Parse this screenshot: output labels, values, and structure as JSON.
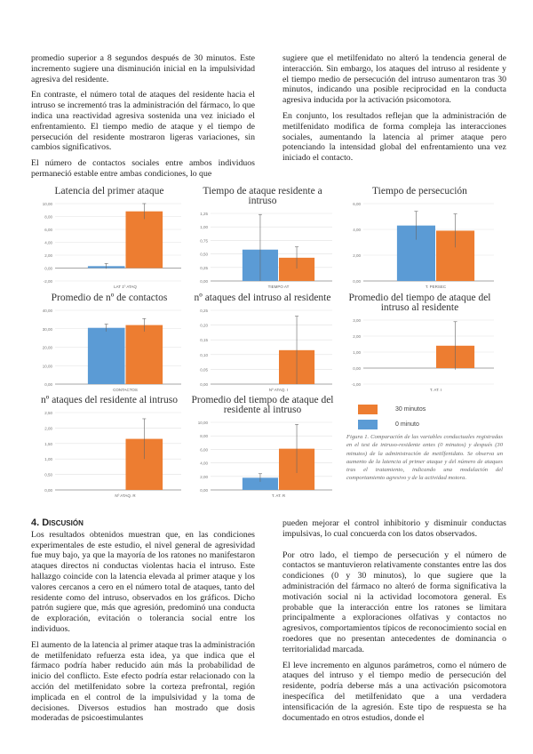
{
  "top_left": [
    "promedio superior a 8 segundos después de 30 minutos. Este incremento sugiere una disminución inicial en la impulsividad agresiva del residente.",
    "En contraste, el número total de ataques del residente hacia el intruso se incrementó tras la administración del fármaco, lo que indica una reactividad agresiva sostenida una vez iniciado el enfrentamiento. El tiempo medio de ataque y el tiempo de persecución del residente mostraron ligeras variaciones, sin cambios significativos.",
    "El número de contactos sociales entre ambos individuos permaneció estable entre ambas condiciones, lo que"
  ],
  "top_right": [
    "sugiere que el metilfenidato no alteró la tendencia general de interacción. Sin embargo, los ataques del intruso al residente y el tiempo medio de persecución del intruso aumentaron tras 30 minutos, indicando una posible reciprocidad en la conducta agresiva inducida por la activación psicomotora.",
    "En conjunto, los resultados reflejan que la administración de metilfenidato modifica de forma compleja las interacciones sociales, aumentando la latencia al primer ataque pero potenciando la intensidad global del enfrentamiento una vez iniciado el contacto."
  ],
  "section_title": "4. Discusión",
  "bottom_left": [
    "Los resultados obtenidos muestran que, en las condiciones experimentales de este estudio, el nivel general de agresividad fue muy bajo, ya que la mayoría de los ratones no manifestaron ataques directos ni conductas violentas hacia el intruso. Este hallazgo coincide con la latencia elevada al primer ataque y los valores cercanos a cero en el número total de ataques, tanto del residente como del intruso, observados en los gráficos. Dicho patrón sugiere que, más que agresión, predominó una conducta de exploración, evitación o tolerancia social entre los individuos.",
    "El aumento de la latencia al primer ataque tras la administración de metilfenidato refuerza esta idea, ya que indica que el fármaco podría haber reducido aún más la probabilidad de inicio del conflicto. Este efecto podría estar relacionado con la acción del metilfenidato sobre la corteza prefrontal, región implicada en el control de la impulsividad y la toma de decisiones. Diversos estudios han mostrado que dosis moderadas de psicoestimulantes"
  ],
  "bottom_right": [
    "pueden mejorar el control inhibitorio y disminuir conductas impulsivas, lo cual concuerda con los datos observados.",
    "Por otro lado, el tiempo de persecución y el número de contactos se mantuvieron relativamente constantes entre las dos condiciones (0 y 30 minutos), lo que sugiere que la administración del fármaco no alteró de forma significativa la motivación social ni la actividad locomotora general. Es probable que la interacción entre los ratones se limitara principalmente a exploraciones olfativas y contactos no agresivos, comportamientos típicos de reconocimiento social en roedores que no presentan antecedentes de dominancia o territorialidad marcada.",
    "El leve incremento en algunos parámetros, como el número de ataques del intruso y el tiempo medio de persecución del residente, podría deberse más a una activación psicomotora inespecífica del metilfenidato que a una verdadera intensificación de la agresión. Este tipo de respuesta se ha documentado en otros estudios, donde el"
  ],
  "legend": [
    {
      "label": "30 minutos",
      "color": "#ED7D31"
    },
    {
      "label": "0 minuto",
      "color": "#5B9BD5"
    }
  ],
  "caption": "Figura 1. Comparación de las variables conductuales registradas en el test de intruso-residente antes (0 minutos) y después (30 minutos) de la administración de metilfenidato. Se observa un aumento de la latencia al primer ataque y del número de ataques tras el tratamiento, indicando una modulación del comportamiento agresivo y de la actividad motora.",
  "chart_data": [
    {
      "type": "bar",
      "title": "Latencia del primer ataque",
      "categories": [
        "LAT 1º ATAQ"
      ],
      "ylim": [
        -2,
        10
      ],
      "ticks": [
        "10,00",
        "8,00",
        "6,00",
        "4,00",
        "2,00",
        "0,00",
        "-2,00"
      ],
      "series": [
        {
          "name": "0 minuto",
          "values": [
            0.3
          ],
          "err": [
            0.4
          ]
        },
        {
          "name": "30 minutos",
          "values": [
            8.8
          ],
          "err": [
            1.2
          ]
        }
      ]
    },
    {
      "type": "bar",
      "title": "Tiempo de ataque residente a intruso",
      "categories": [
        "TIEMPO AT"
      ],
      "ylim": [
        0,
        1.25
      ],
      "ticks": [
        "1,25",
        "1,00",
        "0,75",
        "0,50",
        "0,25",
        "0,00"
      ],
      "series": [
        {
          "name": "0 minuto",
          "values": [
            0.58
          ],
          "err": [
            0.65
          ]
        },
        {
          "name": "30 minutos",
          "values": [
            0.43
          ],
          "err": [
            0.2
          ]
        }
      ]
    },
    {
      "type": "bar",
      "title": "Tiempo de persecución",
      "categories": [
        "T. PERSEC"
      ],
      "ylim": [
        0,
        6
      ],
      "ticks": [
        "6,00",
        "4,00",
        "2,00",
        "0,00"
      ],
      "series": [
        {
          "name": "0 minuto",
          "values": [
            4.3
          ],
          "err": [
            1.1
          ]
        },
        {
          "name": "30 minutos",
          "values": [
            3.9
          ],
          "err": [
            1.3
          ]
        }
      ]
    },
    {
      "type": "bar",
      "title": "Promedio de nº de contactos",
      "categories": [
        "CONTACTOS"
      ],
      "ylim": [
        0,
        40
      ],
      "ticks": [
        "40,00",
        "30,00",
        "20,00",
        "10,00",
        "0,00"
      ],
      "series": [
        {
          "name": "0 minuto",
          "values": [
            30.5
          ],
          "err": [
            2
          ]
        },
        {
          "name": "30 minutos",
          "values": [
            32
          ],
          "err": [
            3.5
          ]
        }
      ]
    },
    {
      "type": "bar",
      "title": "nº ataques del intruso al residente",
      "categories": [
        "Nº ATAQ. I"
      ],
      "ylim": [
        0,
        0.25
      ],
      "ticks": [
        "0,25",
        "0,20",
        "0,15",
        "0,10",
        "0,05",
        "0,00"
      ],
      "series": [
        {
          "name": "0 minuto",
          "values": [
            0
          ],
          "err": [
            0
          ]
        },
        {
          "name": "30 minutos",
          "values": [
            0.115
          ],
          "err": [
            0.115
          ]
        }
      ]
    },
    {
      "type": "bar",
      "title": "Promedio del tiempo de ataque del intruso al residente",
      "categories": [
        "T. AT. I"
      ],
      "ylim": [
        -1,
        3
      ],
      "ticks": [
        "3,00",
        "2,00",
        "1,00",
        "0,00",
        "-1,00"
      ],
      "series": [
        {
          "name": "0 minuto",
          "values": [
            0
          ],
          "err": [
            0
          ]
        },
        {
          "name": "30 minutos",
          "values": [
            1.4
          ],
          "err": [
            1.5
          ]
        }
      ]
    },
    {
      "type": "bar",
      "title": "nº ataques del residente al intruso",
      "categories": [
        "Nº ATAQ. R"
      ],
      "ylim": [
        0,
        2.5
      ],
      "ticks": [
        "2,50",
        "2,00",
        "1,50",
        "1,00",
        "0,50",
        "0,00"
      ],
      "series": [
        {
          "name": "0 minuto",
          "values": [
            0
          ],
          "err": [
            0
          ]
        },
        {
          "name": "30 minutos",
          "values": [
            1.65
          ],
          "err": [
            0.65
          ]
        }
      ]
    },
    {
      "type": "bar",
      "title": "Promedio del tiempo de ataque del residente al intruso",
      "categories": [
        "T. AT. R"
      ],
      "ylim": [
        0,
        10
      ],
      "ticks": [
        "10,00",
        "8,00",
        "6,00",
        "4,00",
        "2,00",
        "0,00"
      ],
      "series": [
        {
          "name": "0 minuto",
          "values": [
            1.8
          ],
          "err": [
            0.6
          ]
        },
        {
          "name": "30 minutos",
          "values": [
            6.1
          ],
          "err": [
            3.6
          ]
        }
      ]
    }
  ]
}
